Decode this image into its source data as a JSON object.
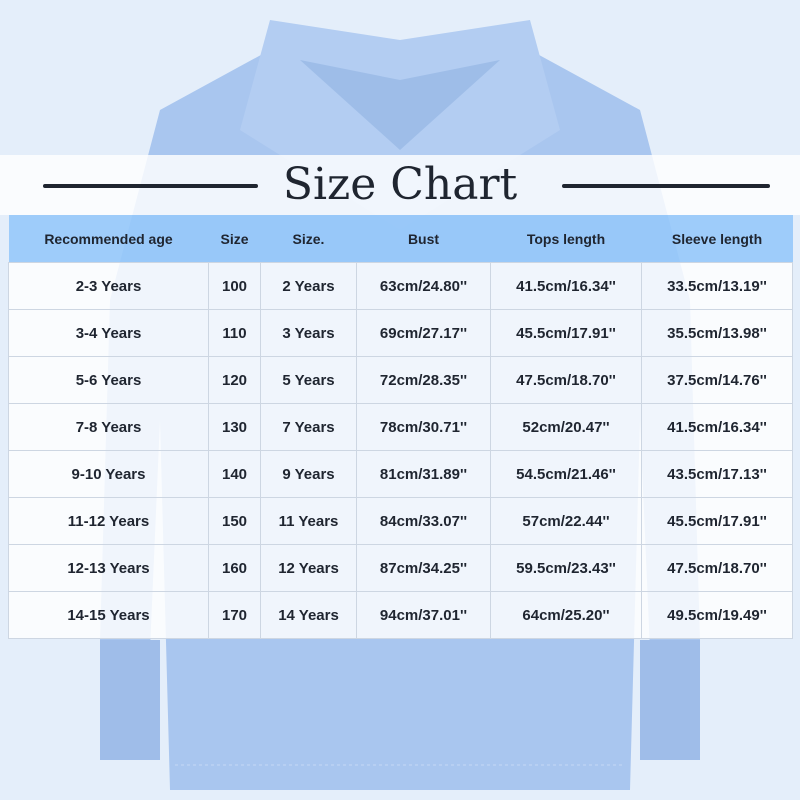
{
  "title": "Size Chart",
  "colors": {
    "header_bg": "#96c8fa",
    "shirt": "#a9c6ef",
    "background": "#e4eefa",
    "text": "#1f2530"
  },
  "table": {
    "headers": [
      "Recommended age",
      "Size",
      "Size.",
      "Bust",
      "Tops length",
      "Sleeve length"
    ],
    "rows": [
      [
        "2-3 Years",
        "100",
        "2 Years",
        "63cm/24.80''",
        "41.5cm/16.34''",
        "33.5cm/13.19''"
      ],
      [
        "3-4 Years",
        "110",
        "3 Years",
        "69cm/27.17''",
        "45.5cm/17.91''",
        "35.5cm/13.98''"
      ],
      [
        "5-6 Years",
        "120",
        "5 Years",
        "72cm/28.35''",
        "47.5cm/18.70''",
        "37.5cm/14.76''"
      ],
      [
        "7-8 Years",
        "130",
        "7 Years",
        "78cm/30.71''",
        "52cm/20.47''",
        "41.5cm/16.34''"
      ],
      [
        "9-10 Years",
        "140",
        "9 Years",
        "81cm/31.89''",
        "54.5cm/21.46''",
        "43.5cm/17.13''"
      ],
      [
        "11-12 Years",
        "150",
        "11 Years",
        "84cm/33.07''",
        "57cm/22.44''",
        "45.5cm/17.91''"
      ],
      [
        "12-13 Years",
        "160",
        "12 Years",
        "87cm/34.25''",
        "59.5cm/23.43''",
        "47.5cm/18.70''"
      ],
      [
        "14-15 Years",
        "170",
        "14 Years",
        "94cm/37.01''",
        "64cm/25.20''",
        "49.5cm/19.49''"
      ]
    ]
  }
}
